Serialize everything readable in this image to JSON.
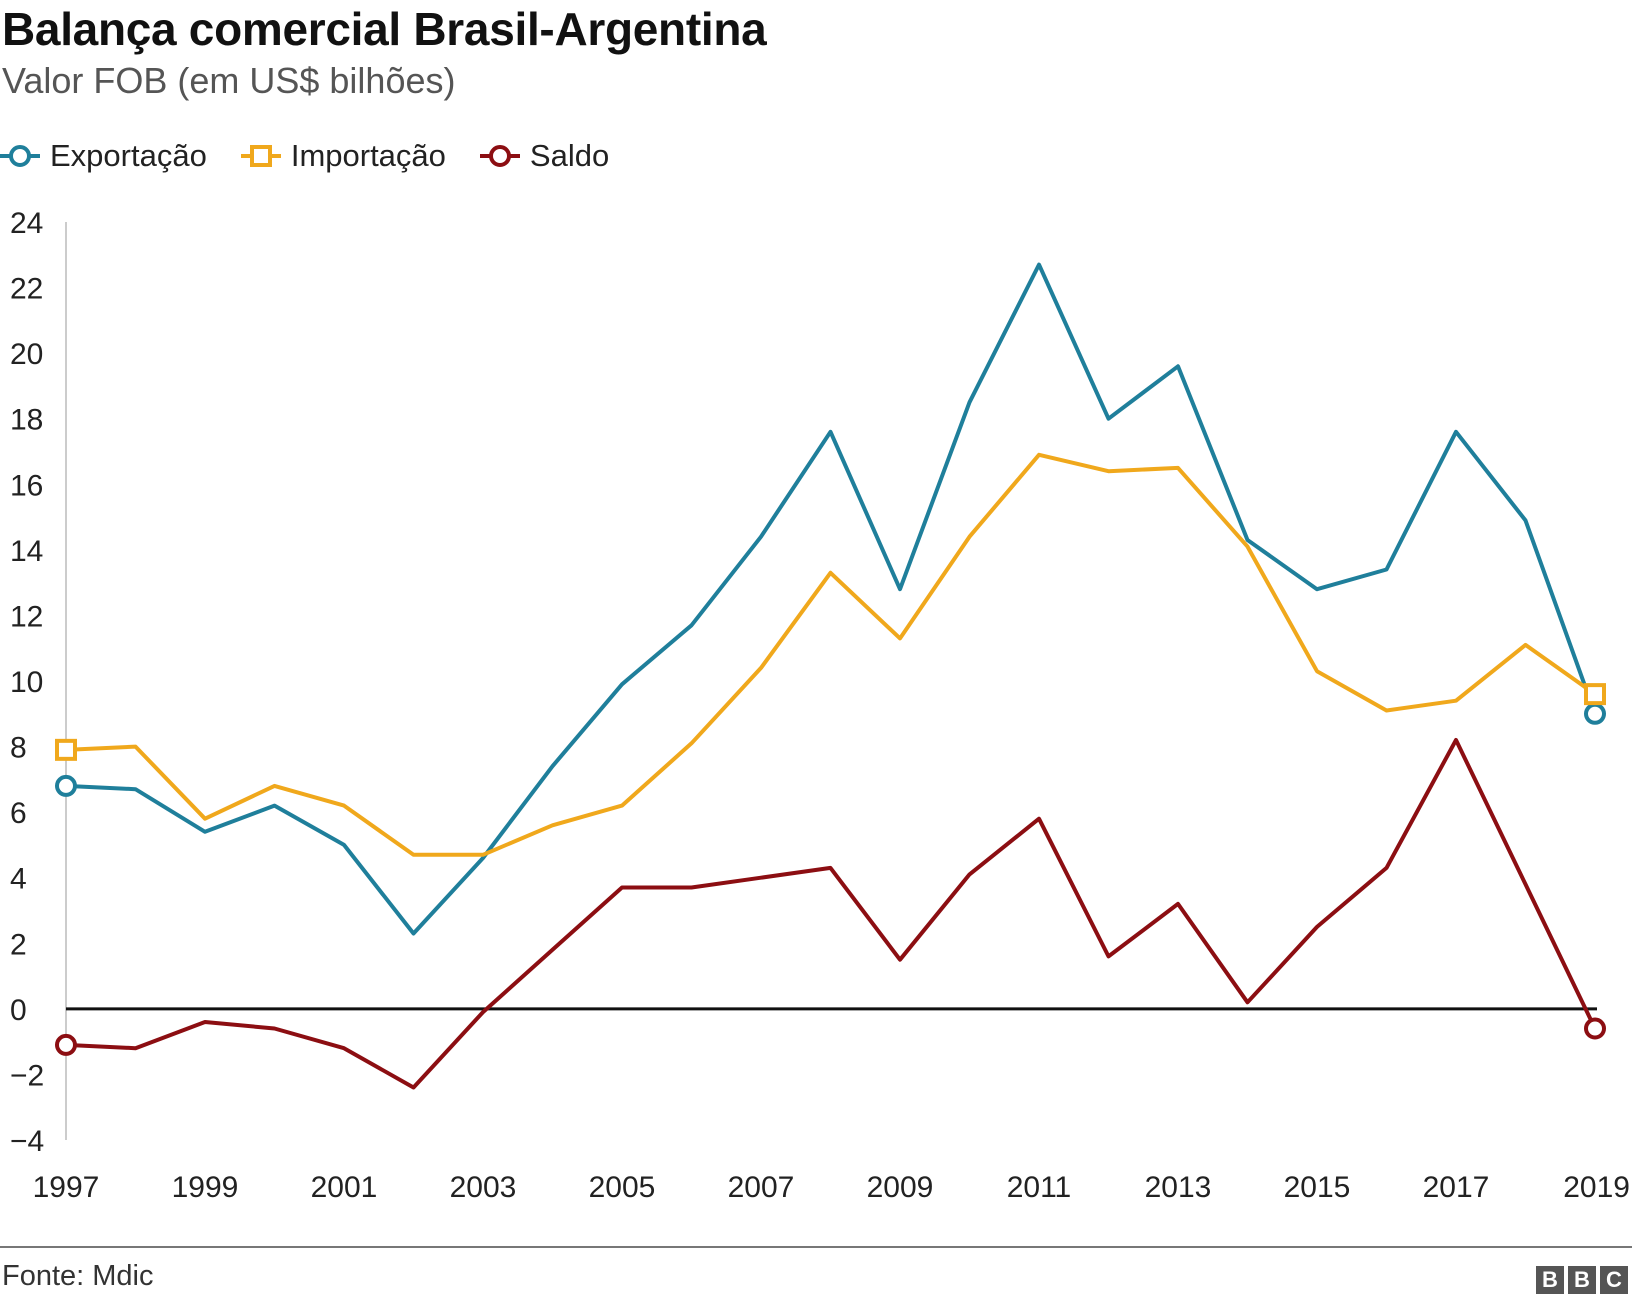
{
  "header": {
    "title": "Balança comercial Brasil-Argentina",
    "subtitle": "Valor FOB (em US$ bilhões)"
  },
  "footer": {
    "source": "Fonte: Mdic",
    "logo": "BBC"
  },
  "chart_data": {
    "type": "line",
    "title": "Balança comercial Brasil-Argentina",
    "subtitle": "Valor FOB (em US$ bilhões)",
    "xlabel": "",
    "ylabel": "",
    "x": [
      1997,
      1998,
      1999,
      2000,
      2001,
      2002,
      2003,
      2004,
      2005,
      2006,
      2007,
      2008,
      2009,
      2010,
      2011,
      2012,
      2013,
      2014,
      2015,
      2016,
      2017,
      2018,
      2019
    ],
    "x_ticks": [
      "1997",
      "1999",
      "2001",
      "2003",
      "2005",
      "2007",
      "2009",
      "2011",
      "2013",
      "2015",
      "2017",
      "2019"
    ],
    "ylim": [
      -4,
      24
    ],
    "y_ticks": [
      24,
      22,
      20,
      18,
      16,
      14,
      12,
      10,
      8,
      6,
      4,
      2,
      0,
      -2,
      -4
    ],
    "y_tick_labels": [
      "24",
      "22",
      "20",
      "18",
      "16",
      "14",
      "12",
      "10",
      "8",
      "6",
      "4",
      "2",
      "0",
      "−2",
      "−4"
    ],
    "grid": false,
    "zero_line": true,
    "legend_position": "top-left",
    "series": [
      {
        "name": "Exportação",
        "color": "#1f7f9b",
        "marker": "circle",
        "values": [
          6.8,
          6.7,
          5.4,
          6.2,
          5.0,
          2.3,
          4.6,
          7.4,
          9.9,
          11.7,
          14.4,
          17.6,
          12.8,
          18.5,
          22.7,
          18.0,
          19.6,
          14.3,
          12.8,
          13.4,
          17.6,
          14.9,
          9.0
        ]
      },
      {
        "name": "Importação",
        "color": "#f0a81c",
        "marker": "square",
        "values": [
          7.9,
          8.0,
          5.8,
          6.8,
          6.2,
          4.7,
          4.7,
          5.6,
          6.2,
          8.1,
          10.4,
          13.3,
          11.3,
          14.4,
          16.9,
          16.4,
          16.5,
          14.1,
          10.3,
          9.1,
          9.4,
          11.1,
          9.6
        ]
      },
      {
        "name": "Saldo",
        "color": "#8c0e12",
        "marker": "circle",
        "values": [
          -1.1,
          -1.2,
          -0.4,
          -0.6,
          -1.2,
          -2.4,
          -0.1,
          1.8,
          3.7,
          3.7,
          4.0,
          4.3,
          1.5,
          4.1,
          5.8,
          1.6,
          3.2,
          0.2,
          2.5,
          4.3,
          8.2,
          3.8,
          -0.6
        ]
      }
    ]
  }
}
